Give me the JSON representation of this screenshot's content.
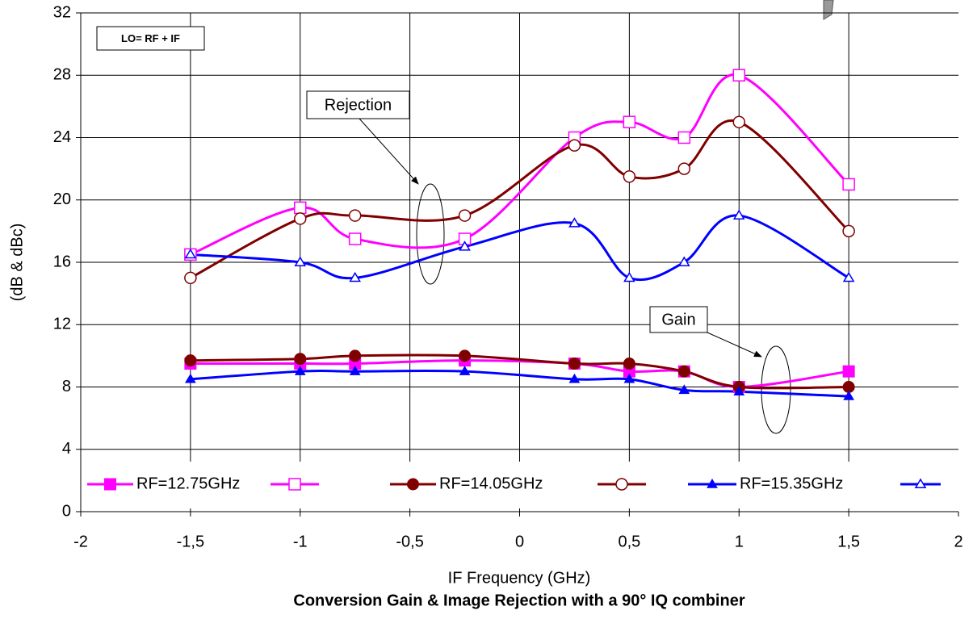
{
  "chart_data": {
    "type": "line",
    "title": "Conversion Gain & Image Rejection with a 90° IQ combiner",
    "xlabel": "IF Frequency (GHz)",
    "ylabel": "(dB & dBc)",
    "annotations": [
      "LO= RF + IF",
      "Rejection",
      "Gain"
    ],
    "x": [
      -1.5,
      -1,
      -0.75,
      -0.25,
      0.25,
      0.5,
      0.75,
      1,
      1.5
    ],
    "series": [
      {
        "name": "RF=12.75GHz",
        "color": "#ff00ff",
        "marker": "square",
        "filled": true,
        "values": [
          9.5,
          9.5,
          9.5,
          9.7,
          9.5,
          9.0,
          9.0,
          8.0,
          9.0
        ]
      },
      {
        "name": null,
        "color": "#ff00ff",
        "marker": "square",
        "filled": false,
        "values": [
          16.5,
          19.5,
          17.5,
          17.5,
          24,
          25,
          24,
          28,
          21
        ]
      },
      {
        "name": "RF=14.05GHz",
        "color": "#800000",
        "marker": "circle",
        "filled": true,
        "values": [
          9.7,
          9.8,
          10,
          10,
          9.5,
          9.5,
          9.0,
          8.0,
          8.0
        ]
      },
      {
        "name": null,
        "color": "#800000",
        "marker": "circle",
        "filled": false,
        "values": [
          15,
          18.8,
          19,
          19,
          23.5,
          21.5,
          22,
          25,
          18
        ]
      },
      {
        "name": "RF=15.35GHz",
        "color": "#0000ff",
        "marker": "triangle",
        "filled": true,
        "values": [
          8.5,
          9.0,
          9.0,
          9.0,
          8.5,
          8.5,
          7.8,
          7.7,
          7.4
        ]
      },
      {
        "name": null,
        "color": "#0000ff",
        "marker": "triangle",
        "filled": false,
        "values": [
          16.5,
          16,
          15,
          17,
          18.5,
          15,
          16,
          19,
          15
        ]
      }
    ],
    "xlim": [
      -2,
      2
    ],
    "xticks": [
      -2,
      {
        "value": -1.5,
        "label": "-1,5"
      },
      -1,
      {
        "value": -0.5,
        "label": "-0,5"
      },
      0,
      {
        "value": 0.5,
        "label": "0,5"
      },
      1,
      {
        "value": 1.5,
        "label": "1,5"
      },
      2
    ],
    "ylim": [
      0,
      32
    ],
    "yticks": [
      0,
      4,
      8,
      12,
      16,
      20,
      24,
      28,
      32
    ],
    "grid": true,
    "legend": "bottom"
  }
}
